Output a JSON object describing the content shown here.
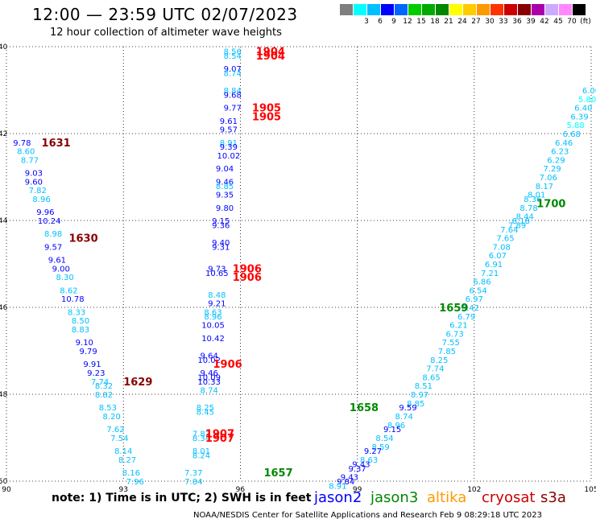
{
  "header": {
    "title": "12:00 — 23:59 UTC 02/07/2023",
    "subtitle": "12 hour collection of altimeter wave heights"
  },
  "colorbar": {
    "colors": [
      "#7f7f7f",
      "#00ffff",
      "#00bfff",
      "#0000ff",
      "#0066ff",
      "#00cc00",
      "#00aa00",
      "#008800",
      "#ffff00",
      "#ffcc00",
      "#ff9900",
      "#ff3300",
      "#cc0000",
      "#880000",
      "#aa00aa",
      "#ccaaff",
      "#ff88ff",
      "#000000"
    ],
    "labels": [
      "",
      "3",
      "6",
      "9",
      "12",
      "15",
      "18",
      "21",
      "24",
      "27",
      "30",
      "33",
      "36",
      "39",
      "42",
      "45",
      "70",
      "(ft)"
    ]
  },
  "footer": {
    "note": "note: 1) Time is in UTC; 2) SWH is in feet",
    "satellites": [
      {
        "name": "jason2",
        "color": "#0000ff"
      },
      {
        "name": "jason3",
        "color": "#008800"
      },
      {
        "name": "altika",
        "color": "#ff9900"
      },
      {
        "name": "cryosat",
        "color": "#cc0000"
      },
      {
        "name": "s3a",
        "color": "#880000"
      }
    ],
    "credit": "NOAA/NESDIS Center for Satellite Applications and Research    Feb  9 08:29:18 UTC 2023"
  },
  "chart_data": {
    "type": "scatter",
    "xlim": [
      90,
      105
    ],
    "ylim": [
      -50,
      -40
    ],
    "x_ticks": [
      "90",
      "93",
      "96",
      "99",
      "102",
      "105"
    ],
    "y_ticks": [
      "-40",
      "-42",
      "-44",
      "-46",
      "-48",
      "-50"
    ],
    "grid": true,
    "color_scale": {
      "breaks": [
        3,
        6,
        9,
        12
      ],
      "colors": [
        "#00ffff",
        "#00bfff",
        "#0000ff",
        "#0066ff"
      ]
    },
    "time_labels": [
      {
        "text": "1904",
        "lon": 96.4,
        "lat": -40.1,
        "color": "#ff0000"
      },
      {
        "text": "1904",
        "lon": 96.4,
        "lat": -40.2,
        "color": "#ff0000"
      },
      {
        "text": "1905",
        "lon": 96.3,
        "lat": -41.4,
        "color": "#ff0000"
      },
      {
        "text": "1905",
        "lon": 96.3,
        "lat": -41.6,
        "color": "#ff0000"
      },
      {
        "text": "1631",
        "lon": 90.9,
        "lat": -42.2,
        "color": "#880000"
      },
      {
        "text": "1630",
        "lon": 91.6,
        "lat": -44.4,
        "color": "#880000"
      },
      {
        "text": "1906",
        "lon": 95.8,
        "lat": -45.1,
        "color": "#ff0000"
      },
      {
        "text": "1906",
        "lon": 95.8,
        "lat": -45.3,
        "color": "#ff0000"
      },
      {
        "text": "1906",
        "lon": 95.3,
        "lat": -47.3,
        "color": "#ff0000"
      },
      {
        "text": "1629",
        "lon": 93.0,
        "lat": -47.7,
        "color": "#880000"
      },
      {
        "text": "1907",
        "lon": 95.1,
        "lat": -48.9,
        "color": "#ff0000"
      },
      {
        "text": "1907",
        "lon": 95.1,
        "lat": -49.0,
        "color": "#ff0000"
      },
      {
        "text": "1700",
        "lon": 103.6,
        "lat": -43.6,
        "color": "#008800"
      },
      {
        "text": "1659",
        "lon": 101.1,
        "lat": -46.0,
        "color": "#008800"
      },
      {
        "text": "1658",
        "lon": 98.8,
        "lat": -48.3,
        "color": "#008800"
      },
      {
        "text": "1657",
        "lon": 96.6,
        "lat": -49.8,
        "color": "#008800"
      }
    ],
    "points": [
      {
        "lon": 95.8,
        "lat": -40.1,
        "v": 8.56
      },
      {
        "lon": 95.8,
        "lat": -40.2,
        "v": 8.54
      },
      {
        "lon": 95.8,
        "lat": -40.5,
        "v": 9.07
      },
      {
        "lon": 95.8,
        "lat": -40.6,
        "v": 8.74
      },
      {
        "lon": 95.8,
        "lat": -41.0,
        "v": 8.84
      },
      {
        "lon": 95.8,
        "lat": -41.1,
        "v": 9.68
      },
      {
        "lon": 95.8,
        "lat": -41.4,
        "v": 9.77
      },
      {
        "lon": 95.7,
        "lat": -41.7,
        "v": 9.61
      },
      {
        "lon": 95.7,
        "lat": -41.9,
        "v": 9.57
      },
      {
        "lon": 95.7,
        "lat": -42.2,
        "v": 8.91
      },
      {
        "lon": 95.7,
        "lat": -42.3,
        "v": 9.39
      },
      {
        "lon": 95.7,
        "lat": -42.5,
        "v": 10.02
      },
      {
        "lon": 95.6,
        "lat": -42.8,
        "v": 9.04
      },
      {
        "lon": 95.6,
        "lat": -43.1,
        "v": 9.46
      },
      {
        "lon": 95.6,
        "lat": -43.2,
        "v": 8.85
      },
      {
        "lon": 95.6,
        "lat": -43.4,
        "v": 9.35
      },
      {
        "lon": 95.6,
        "lat": -43.7,
        "v": 9.8
      },
      {
        "lon": 95.5,
        "lat": -44.0,
        "v": 9.15
      },
      {
        "lon": 95.5,
        "lat": -44.1,
        "v": 9.36
      },
      {
        "lon": 95.5,
        "lat": -44.5,
        "v": 9.4
      },
      {
        "lon": 95.5,
        "lat": -44.6,
        "v": 9.31
      },
      {
        "lon": 95.4,
        "lat": -45.1,
        "v": 9.73
      },
      {
        "lon": 95.4,
        "lat": -45.2,
        "v": 10.65
      },
      {
        "lon": 95.4,
        "lat": -45.7,
        "v": 8.48
      },
      {
        "lon": 95.4,
        "lat": -45.9,
        "v": 9.21
      },
      {
        "lon": 95.3,
        "lat": -46.1,
        "v": 8.63
      },
      {
        "lon": 95.3,
        "lat": -46.2,
        "v": 8.96
      },
      {
        "lon": 95.3,
        "lat": -46.4,
        "v": 10.05
      },
      {
        "lon": 95.3,
        "lat": -46.7,
        "v": 10.42
      },
      {
        "lon": 95.2,
        "lat": -47.1,
        "v": 9.64
      },
      {
        "lon": 95.2,
        "lat": -47.2,
        "v": 10.02
      },
      {
        "lon": 95.2,
        "lat": -47.5,
        "v": 9.46
      },
      {
        "lon": 95.2,
        "lat": -47.6,
        "v": 10.09
      },
      {
        "lon": 95.2,
        "lat": -47.7,
        "v": 10.33
      },
      {
        "lon": 95.2,
        "lat": -47.9,
        "v": 8.74
      },
      {
        "lon": 95.1,
        "lat": -48.3,
        "v": 8.25
      },
      {
        "lon": 95.1,
        "lat": -48.4,
        "v": 8.45
      },
      {
        "lon": 95.0,
        "lat": -48.9,
        "v": 7.82
      },
      {
        "lon": 95.0,
        "lat": -49.0,
        "v": 8.34
      },
      {
        "lon": 95.0,
        "lat": -49.3,
        "v": 8.01
      },
      {
        "lon": 95.0,
        "lat": -49.4,
        "v": 8.24
      },
      {
        "lon": 94.8,
        "lat": -49.8,
        "v": 7.37
      },
      {
        "lon": 94.8,
        "lat": -50.0,
        "v": 7.84
      },
      {
        "lon": 90.4,
        "lat": -42.2,
        "v": 9.78
      },
      {
        "lon": 90.5,
        "lat": -42.4,
        "v": 8.6
      },
      {
        "lon": 90.6,
        "lat": -42.6,
        "v": 8.77
      },
      {
        "lon": 90.7,
        "lat": -42.9,
        "v": 9.03
      },
      {
        "lon": 90.7,
        "lat": -43.1,
        "v": 9.6
      },
      {
        "lon": 90.8,
        "lat": -43.3,
        "v": 7.82
      },
      {
        "lon": 90.9,
        "lat": -43.5,
        "v": 8.96
      },
      {
        "lon": 91.0,
        "lat": -43.8,
        "v": 9.96
      },
      {
        "lon": 91.1,
        "lat": -44.0,
        "v": 10.24
      },
      {
        "lon": 91.2,
        "lat": -44.3,
        "v": 8.98
      },
      {
        "lon": 91.2,
        "lat": -44.6,
        "v": 9.57
      },
      {
        "lon": 91.3,
        "lat": -44.9,
        "v": 9.61
      },
      {
        "lon": 91.4,
        "lat": -45.1,
        "v": 9.0
      },
      {
        "lon": 91.5,
        "lat": -45.3,
        "v": 8.3
      },
      {
        "lon": 91.6,
        "lat": -45.6,
        "v": 8.62
      },
      {
        "lon": 91.7,
        "lat": -45.8,
        "v": 10.78
      },
      {
        "lon": 91.8,
        "lat": -46.1,
        "v": 8.33
      },
      {
        "lon": 91.9,
        "lat": -46.3,
        "v": 8.5
      },
      {
        "lon": 91.9,
        "lat": -46.5,
        "v": 8.83
      },
      {
        "lon": 92.0,
        "lat": -46.8,
        "v": 9.1
      },
      {
        "lon": 92.1,
        "lat": -47.0,
        "v": 9.79
      },
      {
        "lon": 92.2,
        "lat": -47.3,
        "v": 9.91
      },
      {
        "lon": 92.3,
        "lat": -47.5,
        "v": 9.23
      },
      {
        "lon": 92.4,
        "lat": -47.7,
        "v": 7.74
      },
      {
        "lon": 92.5,
        "lat": -47.8,
        "v": 8.32
      },
      {
        "lon": 92.5,
        "lat": -48.0,
        "v": 8.82
      },
      {
        "lon": 92.6,
        "lat": -48.3,
        "v": 8.53
      },
      {
        "lon": 92.7,
        "lat": -48.5,
        "v": 8.2
      },
      {
        "lon": 92.8,
        "lat": -48.8,
        "v": 7.62
      },
      {
        "lon": 92.9,
        "lat": -49.0,
        "v": 7.54
      },
      {
        "lon": 93.0,
        "lat": -49.3,
        "v": 8.14
      },
      {
        "lon": 93.1,
        "lat": -49.5,
        "v": 8.27
      },
      {
        "lon": 93.2,
        "lat": -49.8,
        "v": 8.16
      },
      {
        "lon": 93.3,
        "lat": -50.0,
        "v": 7.96
      },
      {
        "lon": 105.0,
        "lat": -41.0,
        "v": 6.0
      },
      {
        "lon": 104.9,
        "lat": -41.2,
        "v": 5.8
      },
      {
        "lon": 104.8,
        "lat": -41.4,
        "v": 6.4
      },
      {
        "lon": 104.7,
        "lat": -41.6,
        "v": 6.39
      },
      {
        "lon": 104.6,
        "lat": -41.8,
        "v": 5.88
      },
      {
        "lon": 104.5,
        "lat": -42.0,
        "v": 6.68
      },
      {
        "lon": 104.3,
        "lat": -42.2,
        "v": 6.46
      },
      {
        "lon": 104.2,
        "lat": -42.4,
        "v": 6.23
      },
      {
        "lon": 104.1,
        "lat": -42.6,
        "v": 6.29
      },
      {
        "lon": 104.0,
        "lat": -42.8,
        "v": 7.29
      },
      {
        "lon": 103.9,
        "lat": -43.0,
        "v": 7.06
      },
      {
        "lon": 103.8,
        "lat": -43.2,
        "v": 8.17
      },
      {
        "lon": 103.6,
        "lat": -43.4,
        "v": 8.01
      },
      {
        "lon": 103.5,
        "lat": -43.5,
        "v": 8.36
      },
      {
        "lon": 103.4,
        "lat": -43.7,
        "v": 8.78
      },
      {
        "lon": 103.3,
        "lat": -43.9,
        "v": 8.44
      },
      {
        "lon": 103.2,
        "lat": -44.0,
        "v": 8.18
      },
      {
        "lon": 103.1,
        "lat": -44.1,
        "v": 7.89
      },
      {
        "lon": 102.9,
        "lat": -44.2,
        "v": 7.64
      },
      {
        "lon": 102.8,
        "lat": -44.4,
        "v": 7.65
      },
      {
        "lon": 102.7,
        "lat": -44.6,
        "v": 7.08
      },
      {
        "lon": 102.6,
        "lat": -44.8,
        "v": 6.07
      },
      {
        "lon": 102.5,
        "lat": -45.0,
        "v": 6.91
      },
      {
        "lon": 102.4,
        "lat": -45.2,
        "v": 7.21
      },
      {
        "lon": 102.2,
        "lat": -45.4,
        "v": 6.86
      },
      {
        "lon": 102.1,
        "lat": -45.6,
        "v": 6.54
      },
      {
        "lon": 102.0,
        "lat": -45.8,
        "v": 6.97
      },
      {
        "lon": 101.9,
        "lat": -46.0,
        "v": 6.42
      },
      {
        "lon": 101.8,
        "lat": -46.2,
        "v": 6.79
      },
      {
        "lon": 101.6,
        "lat": -46.4,
        "v": 6.21
      },
      {
        "lon": 101.5,
        "lat": -46.6,
        "v": 6.73
      },
      {
        "lon": 101.4,
        "lat": -46.8,
        "v": 7.55
      },
      {
        "lon": 101.3,
        "lat": -47.0,
        "v": 7.85
      },
      {
        "lon": 101.1,
        "lat": -47.2,
        "v": 8.25
      },
      {
        "lon": 101.0,
        "lat": -47.4,
        "v": 7.74
      },
      {
        "lon": 100.9,
        "lat": -47.6,
        "v": 8.65
      },
      {
        "lon": 100.7,
        "lat": -47.8,
        "v": 8.51
      },
      {
        "lon": 100.6,
        "lat": -48.0,
        "v": 8.97
      },
      {
        "lon": 100.5,
        "lat": -48.2,
        "v": 8.85
      },
      {
        "lon": 100.3,
        "lat": -48.3,
        "v": 9.59
      },
      {
        "lon": 100.2,
        "lat": -48.5,
        "v": 8.74
      },
      {
        "lon": 100.0,
        "lat": -48.7,
        "v": 8.96
      },
      {
        "lon": 99.9,
        "lat": -48.8,
        "v": 9.15
      },
      {
        "lon": 99.7,
        "lat": -49.0,
        "v": 8.54
      },
      {
        "lon": 99.6,
        "lat": -49.2,
        "v": 8.59
      },
      {
        "lon": 99.4,
        "lat": -49.3,
        "v": 9.27
      },
      {
        "lon": 99.3,
        "lat": -49.5,
        "v": 8.63
      },
      {
        "lon": 99.1,
        "lat": -49.6,
        "v": 9.43
      },
      {
        "lon": 99.0,
        "lat": -49.7,
        "v": 9.37
      },
      {
        "lon": 98.8,
        "lat": -49.9,
        "v": 9.43
      },
      {
        "lon": 98.7,
        "lat": -50.0,
        "v": 9.84
      },
      {
        "lon": 98.5,
        "lat": -50.1,
        "v": 8.91
      }
    ]
  }
}
